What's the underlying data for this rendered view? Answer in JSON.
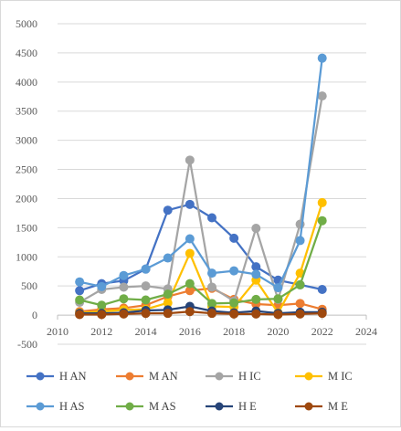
{
  "chart_data": {
    "type": "line",
    "title": "",
    "xlabel": "",
    "ylabel": "",
    "xlim": [
      2010,
      2024
    ],
    "ylim": [
      -500,
      5000
    ],
    "x_ticks": [
      2010,
      2012,
      2014,
      2016,
      2018,
      2020,
      2022,
      2024
    ],
    "x_tick_labels": [
      "2010",
      "2012",
      "2014",
      "2016",
      "2018",
      "2020",
      "2022",
      "2024"
    ],
    "y_ticks": [
      -500,
      0,
      500,
      1000,
      1500,
      2000,
      2500,
      3000,
      3500,
      4000,
      4500,
      5000
    ],
    "y_tick_labels": [
      "-500",
      "0",
      "500",
      "1000",
      "1500",
      "2000",
      "2500",
      "3000",
      "3500",
      "4000",
      "4500",
      "5000"
    ],
    "grid": "horizontal",
    "legend_position": "bottom",
    "x": [
      2011,
      2012,
      2013,
      2014,
      2015,
      2016,
      2017,
      2018,
      2019,
      2020,
      2021,
      2022
    ],
    "series": [
      {
        "name": "H AN",
        "color": "#4472c4",
        "values": [
          420,
          540,
          590,
          790,
          1800,
          1900,
          1670,
          1320,
          830,
          600,
          520,
          440
        ]
      },
      {
        "name": "M AN",
        "color": "#ed7d31",
        "values": [
          60,
          100,
          120,
          170,
          320,
          420,
          460,
          270,
          190,
          170,
          200,
          100
        ]
      },
      {
        "name": "H IC",
        "color": "#a5a5a5",
        "values": [
          220,
          440,
          480,
          500,
          450,
          2660,
          480,
          240,
          1490,
          270,
          1560,
          3760
        ]
      },
      {
        "name": "M IC",
        "color": "#ffc000",
        "values": [
          40,
          60,
          90,
          100,
          210,
          1060,
          150,
          140,
          600,
          40,
          720,
          1930
        ]
      },
      {
        "name": "H AS",
        "color": "#5b9bd5",
        "values": [
          570,
          490,
          680,
          790,
          980,
          1310,
          720,
          760,
          700,
          470,
          1280,
          4410
        ]
      },
      {
        "name": "M AS",
        "color": "#70ad47",
        "values": [
          260,
          170,
          280,
          260,
          360,
          540,
          200,
          210,
          270,
          280,
          520,
          1620
        ]
      },
      {
        "name": "H E",
        "color": "#264478",
        "values": [
          30,
          30,
          40,
          80,
          90,
          150,
          70,
          40,
          70,
          30,
          50,
          50
        ]
      },
      {
        "name": "M E",
        "color": "#9e480e",
        "values": [
          10,
          10,
          20,
          30,
          30,
          60,
          30,
          20,
          20,
          10,
          20,
          30
        ]
      }
    ]
  }
}
